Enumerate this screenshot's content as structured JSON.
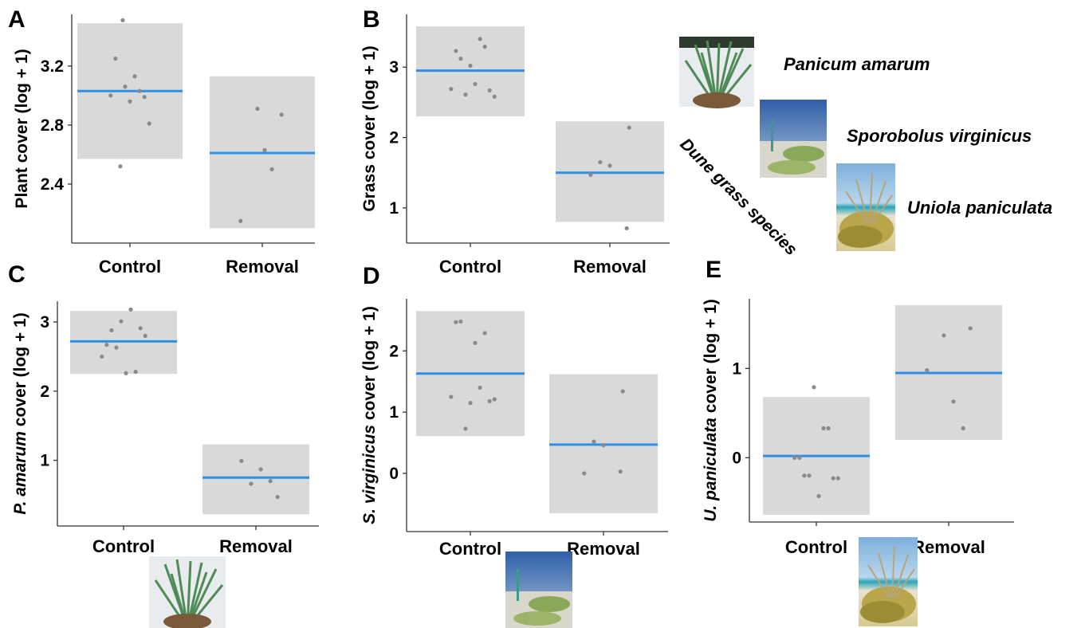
{
  "legend": {
    "group_title": "Dune grass species",
    "species": [
      "Panicum amarum",
      "Sporobolus virginicus",
      "Uniola paniculata"
    ]
  },
  "chart_data": [
    {
      "panel": "A",
      "type": "scatter",
      "ylabel": "Plant cover (log + 1)",
      "categories": [
        "Control",
        "Removal"
      ],
      "yticks": [
        2.4,
        2.8,
        3.2
      ],
      "ytick_labels": [
        "2.4",
        "2.8",
        "3.2"
      ],
      "ylim": [
        2.0,
        3.55
      ],
      "groups": [
        {
          "category": "Control",
          "mean": 3.03,
          "range": [
            2.57,
            3.49
          ],
          "points": [
            [
              -0.4,
              3.0
            ],
            [
              -0.15,
              3.51
            ],
            [
              -0.3,
              3.25
            ],
            [
              -0.2,
              2.52
            ],
            [
              -0.1,
              3.06
            ],
            [
              0.0,
              2.96
            ],
            [
              0.1,
              3.13
            ],
            [
              0.2,
              3.03
            ],
            [
              0.3,
              2.99
            ],
            [
              0.4,
              2.81
            ]
          ]
        },
        {
          "category": "Removal",
          "mean": 2.61,
          "range": [
            2.1,
            3.13
          ],
          "points": [
            [
              -0.45,
              2.15
            ],
            [
              -0.1,
              2.91
            ],
            [
              0.05,
              2.63
            ],
            [
              0.2,
              2.5
            ],
            [
              0.4,
              2.87
            ]
          ]
        }
      ]
    },
    {
      "panel": "B",
      "type": "scatter",
      "ylabel": "Grass cover   (log + 1)",
      "categories": [
        "Control",
        "Removal"
      ],
      "yticks": [
        1,
        2,
        3
      ],
      "ytick_labels": [
        "1",
        "2",
        "3"
      ],
      "ylim": [
        0.5,
        3.75
      ],
      "groups": [
        {
          "category": "Control",
          "mean": 2.95,
          "range": [
            2.3,
            3.58
          ],
          "points": [
            [
              -0.4,
              2.69
            ],
            [
              -0.3,
              3.23
            ],
            [
              -0.2,
              3.12
            ],
            [
              -0.1,
              2.61
            ],
            [
              0.0,
              3.02
            ],
            [
              0.1,
              2.76
            ],
            [
              0.2,
              3.4
            ],
            [
              0.3,
              3.29
            ],
            [
              0.4,
              2.67
            ],
            [
              0.5,
              2.58
            ]
          ]
        },
        {
          "category": "Removal",
          "mean": 1.5,
          "range": [
            0.8,
            2.23
          ],
          "points": [
            [
              -0.4,
              1.47
            ],
            [
              -0.2,
              1.65
            ],
            [
              0.0,
              1.6
            ],
            [
              0.35,
              0.71
            ],
            [
              0.4,
              2.14
            ]
          ]
        }
      ]
    },
    {
      "panel": "C",
      "type": "scatter",
      "ylabel": "P. amarum cover (log + 1)",
      "categories": [
        "Control",
        "Removal"
      ],
      "yticks": [
        1,
        2,
        3
      ],
      "ytick_labels": [
        "1",
        "2",
        "3"
      ],
      "ylim": [
        0.05,
        3.3
      ],
      "groups": [
        {
          "category": "Control",
          "mean": 2.72,
          "range": [
            2.25,
            3.16
          ],
          "points": [
            [
              -0.45,
              2.5
            ],
            [
              -0.35,
              2.67
            ],
            [
              -0.25,
              2.88
            ],
            [
              -0.15,
              2.63
            ],
            [
              -0.05,
              3.01
            ],
            [
              0.05,
              2.26
            ],
            [
              0.15,
              3.18
            ],
            [
              0.25,
              2.28
            ],
            [
              0.35,
              2.91
            ],
            [
              0.45,
              2.8
            ]
          ]
        },
        {
          "category": "Removal",
          "mean": 0.75,
          "range": [
            0.22,
            1.23
          ],
          "points": [
            [
              -0.3,
              0.99
            ],
            [
              -0.1,
              0.66
            ],
            [
              0.1,
              0.87
            ],
            [
              0.3,
              0.7
            ],
            [
              0.45,
              0.47
            ]
          ]
        }
      ]
    },
    {
      "panel": "D",
      "type": "scatter",
      "ylabel": "S. virginicus cover (log + 1)",
      "categories": [
        "Control",
        "Removal"
      ],
      "yticks": [
        0,
        1,
        2
      ],
      "ytick_labels": [
        "0",
        "1",
        "2"
      ],
      "ylim": [
        -0.95,
        2.85
      ],
      "groups": [
        {
          "category": "Control",
          "mean": 1.63,
          "range": [
            0.61,
            2.65
          ],
          "points": [
            [
              -0.4,
              1.25
            ],
            [
              -0.3,
              2.47
            ],
            [
              -0.2,
              2.48
            ],
            [
              -0.1,
              0.73
            ],
            [
              0.0,
              1.15
            ],
            [
              0.1,
              2.13
            ],
            [
              0.2,
              1.4
            ],
            [
              0.3,
              2.29
            ],
            [
              0.4,
              1.18
            ],
            [
              0.5,
              1.21
            ]
          ]
        },
        {
          "category": "Removal",
          "mean": 0.47,
          "range": [
            -0.65,
            1.62
          ],
          "points": [
            [
              -0.4,
              0.0
            ],
            [
              -0.2,
              0.52
            ],
            [
              0.0,
              0.46
            ],
            [
              0.35,
              0.03
            ],
            [
              0.4,
              1.34
            ]
          ]
        }
      ]
    },
    {
      "panel": "E",
      "type": "scatter",
      "ylabel": "U. paniculata cover (log + 1)",
      "categories": [
        "Control",
        "Removal"
      ],
      "yticks": [
        0,
        1
      ],
      "ytick_labels": [
        "0",
        "1"
      ],
      "ylim": [
        -0.72,
        1.78
      ],
      "groups": [
        {
          "category": "Control",
          "mean": 0.02,
          "range": [
            -0.64,
            0.68
          ],
          "points": [
            [
              -0.45,
              0.0
            ],
            [
              -0.35,
              0.0
            ],
            [
              -0.25,
              -0.2
            ],
            [
              -0.15,
              -0.2
            ],
            [
              -0.05,
              0.79
            ],
            [
              0.05,
              -0.43
            ],
            [
              0.15,
              0.33
            ],
            [
              0.25,
              0.33
            ],
            [
              0.35,
              -0.23
            ],
            [
              0.45,
              -0.23
            ]
          ]
        },
        {
          "category": "Removal",
          "mean": 0.95,
          "range": [
            0.2,
            1.71
          ],
          "points": [
            [
              -0.45,
              0.98
            ],
            [
              -0.1,
              1.37
            ],
            [
              0.1,
              0.63
            ],
            [
              0.3,
              0.33
            ],
            [
              0.45,
              1.45
            ]
          ]
        }
      ]
    }
  ]
}
